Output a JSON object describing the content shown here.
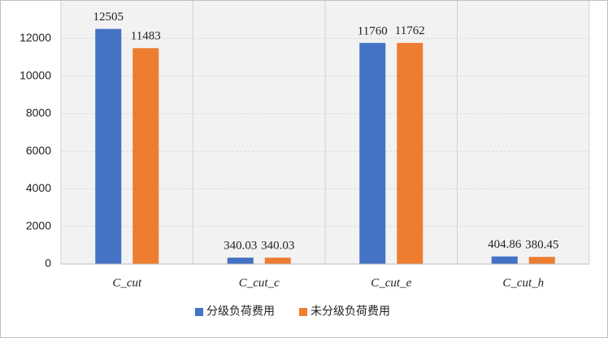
{
  "chart_data": {
    "type": "bar",
    "categories": [
      "C_cut",
      "C_cut_c",
      "C_cut_e",
      "C_cut_h"
    ],
    "series": [
      {
        "name": "分级负荷费用",
        "color": "#4472c4",
        "values": [
          12505,
          340.03,
          11760,
          404.86
        ]
      },
      {
        "name": "未分级负荷费用",
        "color": "#ed7d31",
        "values": [
          11483,
          340.03,
          11762,
          380.45
        ]
      }
    ],
    "ylim": [
      0,
      14000
    ],
    "yticks": [
      0,
      2000,
      4000,
      6000,
      8000,
      10000,
      12000
    ],
    "grid": true,
    "legend": "bottom"
  }
}
